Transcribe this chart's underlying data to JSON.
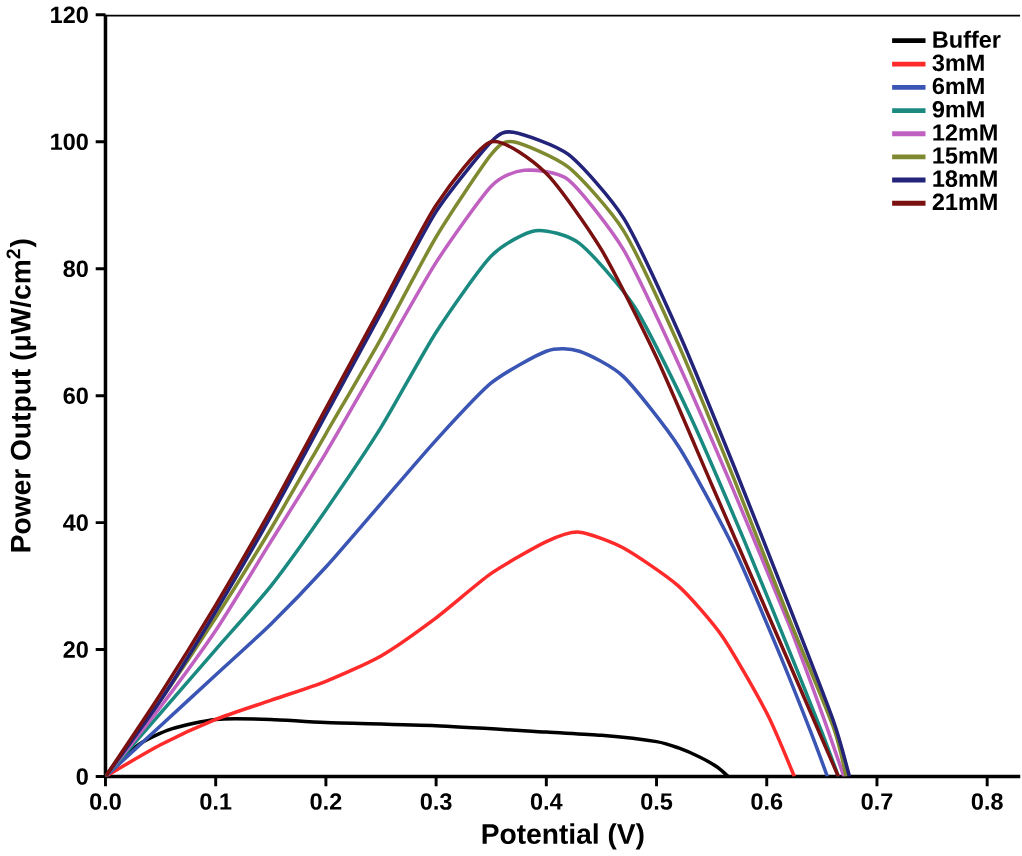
{
  "chart_data": {
    "type": "line",
    "xlabel": "Potential (V)",
    "ylabel": "Power Output (μW/cm$^{2}$)",
    "xlim": [
      0,
      0.83
    ],
    "ylim": [
      0,
      120
    ],
    "xticks": [
      {
        "value": 0,
        "label": "0.0"
      },
      0.1,
      0.2,
      0.3,
      0.4,
      0.5,
      0.6,
      0.7,
      0.8
    ],
    "yticks": [
      0,
      20,
      40,
      60,
      80,
      100,
      120
    ],
    "legend": "top right",
    "grid": false,
    "marker": "none",
    "line_style": "solid",
    "series": [
      {
        "name": "Buffer",
        "color": "#000000",
        "x": [
          0,
          0.03,
          0.06,
          0.1,
          0.15,
          0.2,
          0.3,
          0.4,
          0.45,
          0.5,
          0.52,
          0.54,
          0.555,
          0.565
        ],
        "values": [
          0,
          5,
          7.5,
          9,
          9,
          8.5,
          8,
          7,
          6.5,
          5.5,
          4.5,
          3,
          1.5,
          0
        ]
      },
      {
        "name": "3mM",
        "color": "#ff2a2a",
        "x": [
          0,
          0.05,
          0.1,
          0.15,
          0.2,
          0.25,
          0.3,
          0.35,
          0.4,
          0.43,
          0.47,
          0.52,
          0.56,
          0.6,
          0.625
        ],
        "values": [
          0,
          5,
          9,
          12,
          15,
          19,
          25,
          32,
          37,
          38.5,
          36,
          30,
          22,
          10,
          0
        ]
      },
      {
        "name": "6mM",
        "color": "#3a55b4",
        "x": [
          0,
          0.05,
          0.1,
          0.15,
          0.2,
          0.25,
          0.3,
          0.35,
          0.4,
          0.43,
          0.47,
          0.52,
          0.57,
          0.61,
          0.64,
          0.655
        ],
        "values": [
          0,
          8,
          16,
          24,
          33,
          43,
          53,
          62,
          67,
          67,
          63,
          52,
          36,
          20,
          7,
          0
        ]
      },
      {
        "name": "9mM",
        "color": "#1a8a80",
        "x": [
          0,
          0.05,
          0.1,
          0.15,
          0.2,
          0.25,
          0.3,
          0.35,
          0.39,
          0.43,
          0.48,
          0.53,
          0.58,
          0.62,
          0.65,
          0.665
        ],
        "values": [
          0,
          10,
          20,
          30,
          42,
          55,
          70,
          82,
          86,
          84,
          74,
          57,
          37,
          20,
          7,
          0
        ]
      },
      {
        "name": "12mM",
        "color": "#c060c0",
        "x": [
          0,
          0.05,
          0.1,
          0.15,
          0.2,
          0.25,
          0.3,
          0.35,
          0.38,
          0.42,
          0.47,
          0.52,
          0.57,
          0.62,
          0.65,
          0.67
        ],
        "values": [
          0,
          11,
          23,
          37,
          51,
          66,
          81,
          93,
          95.5,
          94,
          83,
          65,
          45,
          24,
          10,
          0
        ]
      },
      {
        "name": "15mM",
        "color": "#7f8a30",
        "x": [
          0,
          0.05,
          0.1,
          0.15,
          0.2,
          0.25,
          0.3,
          0.35,
          0.37,
          0.42,
          0.47,
          0.52,
          0.57,
          0.62,
          0.66,
          0.672
        ],
        "values": [
          0,
          12,
          25,
          39,
          54,
          69,
          85,
          98,
          100,
          96,
          86,
          68,
          47,
          25,
          8,
          0
        ]
      },
      {
        "name": "18mM",
        "color": "#23237a",
        "x": [
          0,
          0.05,
          0.1,
          0.15,
          0.2,
          0.25,
          0.3,
          0.35,
          0.37,
          0.42,
          0.47,
          0.52,
          0.57,
          0.62,
          0.66,
          0.675
        ],
        "values": [
          0,
          12,
          26,
          41,
          57,
          73,
          89,
          100,
          101.5,
          98,
          88,
          70,
          49,
          27,
          9,
          0
        ]
      },
      {
        "name": "21mM",
        "color": "#7a1010",
        "x": [
          0,
          0.05,
          0.1,
          0.15,
          0.2,
          0.25,
          0.3,
          0.35,
          0.4,
          0.45,
          0.5,
          0.55,
          0.6,
          0.64,
          0.665
        ],
        "values": [
          0,
          13,
          27,
          42,
          58,
          74,
          90,
          100,
          95,
          83,
          66,
          46,
          26,
          10,
          0
        ]
      }
    ]
  }
}
